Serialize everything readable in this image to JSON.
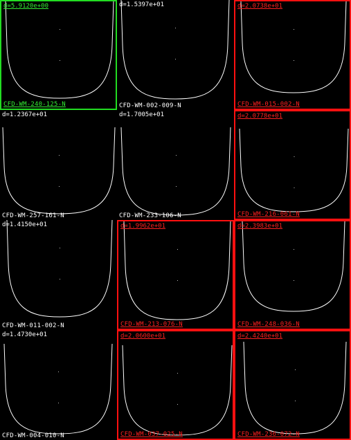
{
  "colors": {
    "background": "#000000",
    "curve": "#ffffff",
    "match_border": "#22dd22",
    "flag_border": "#ff1010",
    "text_default": "#ffffff"
  },
  "cells": [
    {
      "distance": "d=5.9120e+00",
      "id": "CFD-WM-240-125-N",
      "status": "match"
    },
    {
      "distance": "d=1.5397e+01",
      "id": "CFD-WM-002-009-N",
      "status": "normal"
    },
    {
      "distance": "d=2.0738e+01",
      "id": "CFD-WM-015-002-N",
      "status": "flagged"
    },
    {
      "distance": "d=1.2367e+01",
      "id": "CFD-WM-257-161-N",
      "status": "normal"
    },
    {
      "distance": "d=1.7005e+01",
      "id": "CFD-WM-233-106-N",
      "status": "normal"
    },
    {
      "distance": "d=2.0778e+01",
      "id": "CFD-WM-216-061-N",
      "status": "flagged"
    },
    {
      "distance": "d=1.4150e+01",
      "id": "CFD-WM-011-002-N",
      "status": "normal"
    },
    {
      "distance": "d=1.9962e+01",
      "id": "CFD-WM-213-076-N",
      "status": "flagged"
    },
    {
      "distance": "d=2.3983e+01",
      "id": "CFD-WM-248-036-N",
      "status": "flagged"
    },
    {
      "distance": "d=1.4730e+01",
      "id": "CFD-WM-004-010-N",
      "status": "normal"
    },
    {
      "distance": "d=2.0600e+01",
      "id": "CFD-WM-037-025-N",
      "status": "flagged"
    },
    {
      "distance": "d=2.4240e+01",
      "id": "CFD-WM-236-072-N",
      "status": "flagged"
    }
  ]
}
